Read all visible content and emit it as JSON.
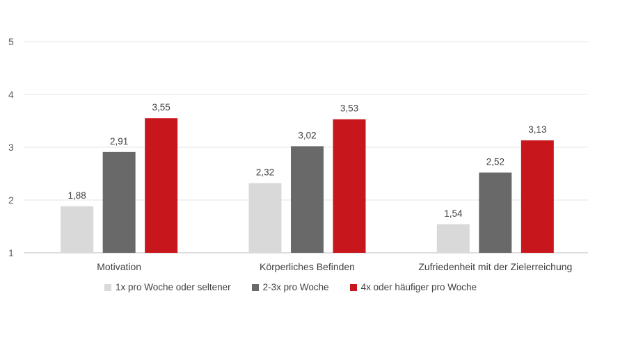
{
  "chart_data": {
    "type": "bar",
    "categories": [
      "Motivation",
      "Körperliches Befinden",
      "Zufriedenheit mit der Zielerreichung"
    ],
    "series": [
      {
        "name": "1x pro Woche oder seltener",
        "values": [
          1.88,
          2.32,
          1.54
        ],
        "labels": [
          "1,88",
          "2,32",
          "1,54"
        ],
        "color": "#d9d9d9"
      },
      {
        "name": "2-3x pro Woche",
        "values": [
          2.91,
          3.02,
          2.52
        ],
        "labels": [
          "2,91",
          "3,02",
          "2,52"
        ],
        "color": "#696969"
      },
      {
        "name": "4x oder häufiger pro Woche",
        "values": [
          3.55,
          3.53,
          3.13
        ],
        "labels": [
          "3,55",
          "3,53",
          "3,13"
        ],
        "color": "#c8161d"
      }
    ],
    "ylim": [
      1,
      5
    ],
    "yticks": [
      "1",
      "2",
      "3",
      "4",
      "5"
    ],
    "grid": true,
    "legend_position": "bottom"
  }
}
